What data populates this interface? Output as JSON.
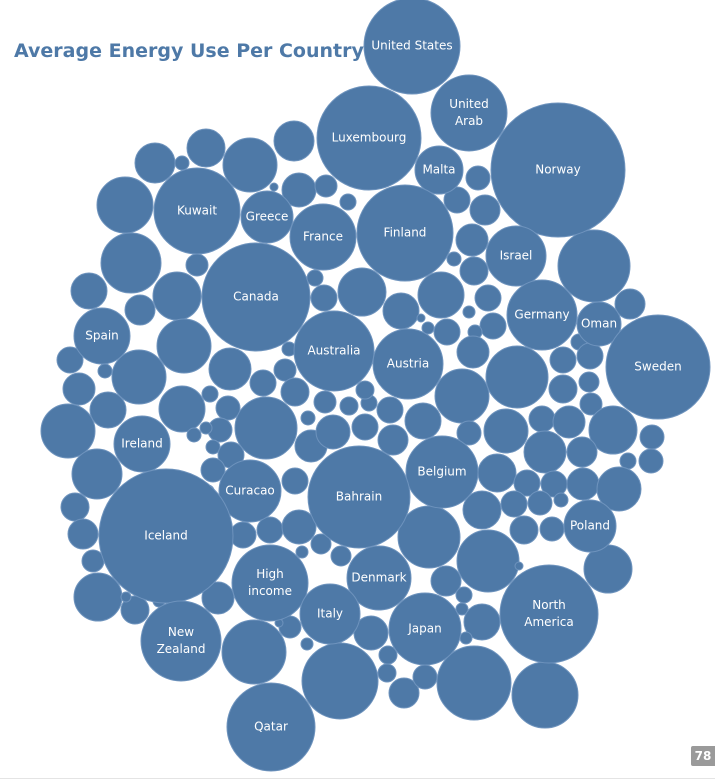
{
  "chart_data": {
    "type": "bubble",
    "title": "Average Energy Use Per Country",
    "color": "#4e79a7",
    "labeled_bubbles": [
      {
        "label": [
          "United States"
        ],
        "rel_size": 48
      },
      {
        "label": [
          "United",
          "Arab"
        ],
        "rel_size": 38
      },
      {
        "label": [
          "Luxembourg"
        ],
        "rel_size": 52
      },
      {
        "label": [
          "Norway"
        ],
        "rel_size": 67
      },
      {
        "label": [
          "Malta"
        ],
        "rel_size": 24
      },
      {
        "label": [
          "Kuwait"
        ],
        "rel_size": 43
      },
      {
        "label": [
          "Greece"
        ],
        "rel_size": 26
      },
      {
        "label": [
          "France"
        ],
        "rel_size": 33
      },
      {
        "label": [
          "Finland"
        ],
        "rel_size": 48
      },
      {
        "label": [
          "Israel"
        ],
        "rel_size": 30
      },
      {
        "label": [
          "Canada"
        ],
        "rel_size": 54
      },
      {
        "label": [
          "Germany"
        ],
        "rel_size": 35
      },
      {
        "label": [
          "Oman"
        ],
        "rel_size": 22
      },
      {
        "label": [
          "Spain"
        ],
        "rel_size": 28
      },
      {
        "label": [
          "Australia"
        ],
        "rel_size": 40
      },
      {
        "label": [
          "Austria"
        ],
        "rel_size": 35
      },
      {
        "label": [
          "Sweden"
        ],
        "rel_size": 52
      },
      {
        "label": [
          "Ireland"
        ],
        "rel_size": 28
      },
      {
        "label": [
          "Belgium"
        ],
        "rel_size": 36
      },
      {
        "label": [
          "Curacao"
        ],
        "rel_size": 31
      },
      {
        "label": [
          "Bahrain"
        ],
        "rel_size": 51
      },
      {
        "label": [
          "Iceland"
        ],
        "rel_size": 67
      },
      {
        "label": [
          "Poland"
        ],
        "rel_size": 26
      },
      {
        "label": [
          "High",
          "income"
        ],
        "rel_size": 38
      },
      {
        "label": [
          "Denmark"
        ],
        "rel_size": 32
      },
      {
        "label": [
          "North",
          "America"
        ],
        "rel_size": 49
      },
      {
        "label": [
          "Italy"
        ],
        "rel_size": 30
      },
      {
        "label": [
          "Japan"
        ],
        "rel_size": 36
      },
      {
        "label": [
          "New",
          "Zealand"
        ],
        "rel_size": 40
      },
      {
        "label": [
          "Qatar"
        ],
        "rel_size": 44
      }
    ]
  },
  "page_number": "78"
}
